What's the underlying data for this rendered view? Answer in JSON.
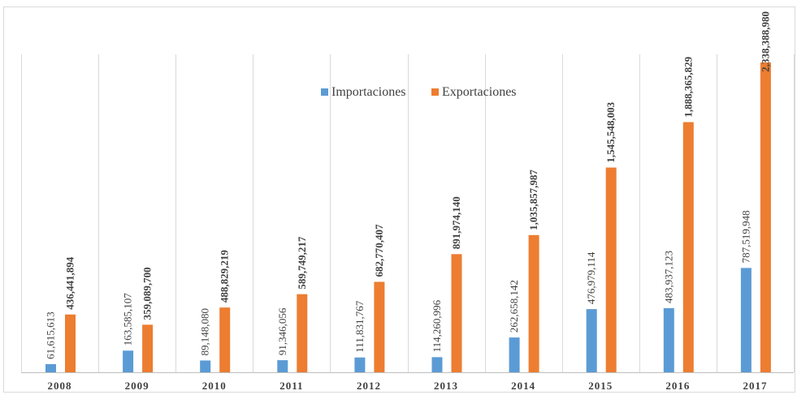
{
  "chart_data": {
    "type": "bar",
    "categories": [
      "2008",
      "2009",
      "2010",
      "2011",
      "2012",
      "2013",
      "2014",
      "2015",
      "2016",
      "2017"
    ],
    "series": [
      {
        "name": "Importaciones",
        "color": "#5b9bd5",
        "values": [
          61615613,
          163585107,
          89148080,
          91346056,
          111831767,
          114260996,
          262658142,
          476979114,
          483937123,
          787519948
        ],
        "labels": [
          "61,615,613",
          "163,585,107",
          "89,148,080",
          "91,346,056",
          "111,831,767",
          "114,260,996",
          "262,658,142",
          "476,979,114",
          "483,937,123",
          "787,519,948"
        ]
      },
      {
        "name": "Exportaciones",
        "color": "#ed7d31",
        "values": [
          436441894,
          359089700,
          488829219,
          589749217,
          682770407,
          891974140,
          1035857987,
          1545548003,
          1888365829,
          2338388980
        ],
        "labels": [
          "436,441,894",
          "359,089,700",
          "488,829,219",
          "589,749,217",
          "682,770,407",
          "891,974,140",
          "1,035,857,987",
          "1,545,548,003",
          "1,888,365,829",
          "2,338,388,980"
        ]
      }
    ],
    "ylim": [
      0,
      2400000000
    ],
    "grid": "vertical",
    "legend_position": "top-center"
  }
}
